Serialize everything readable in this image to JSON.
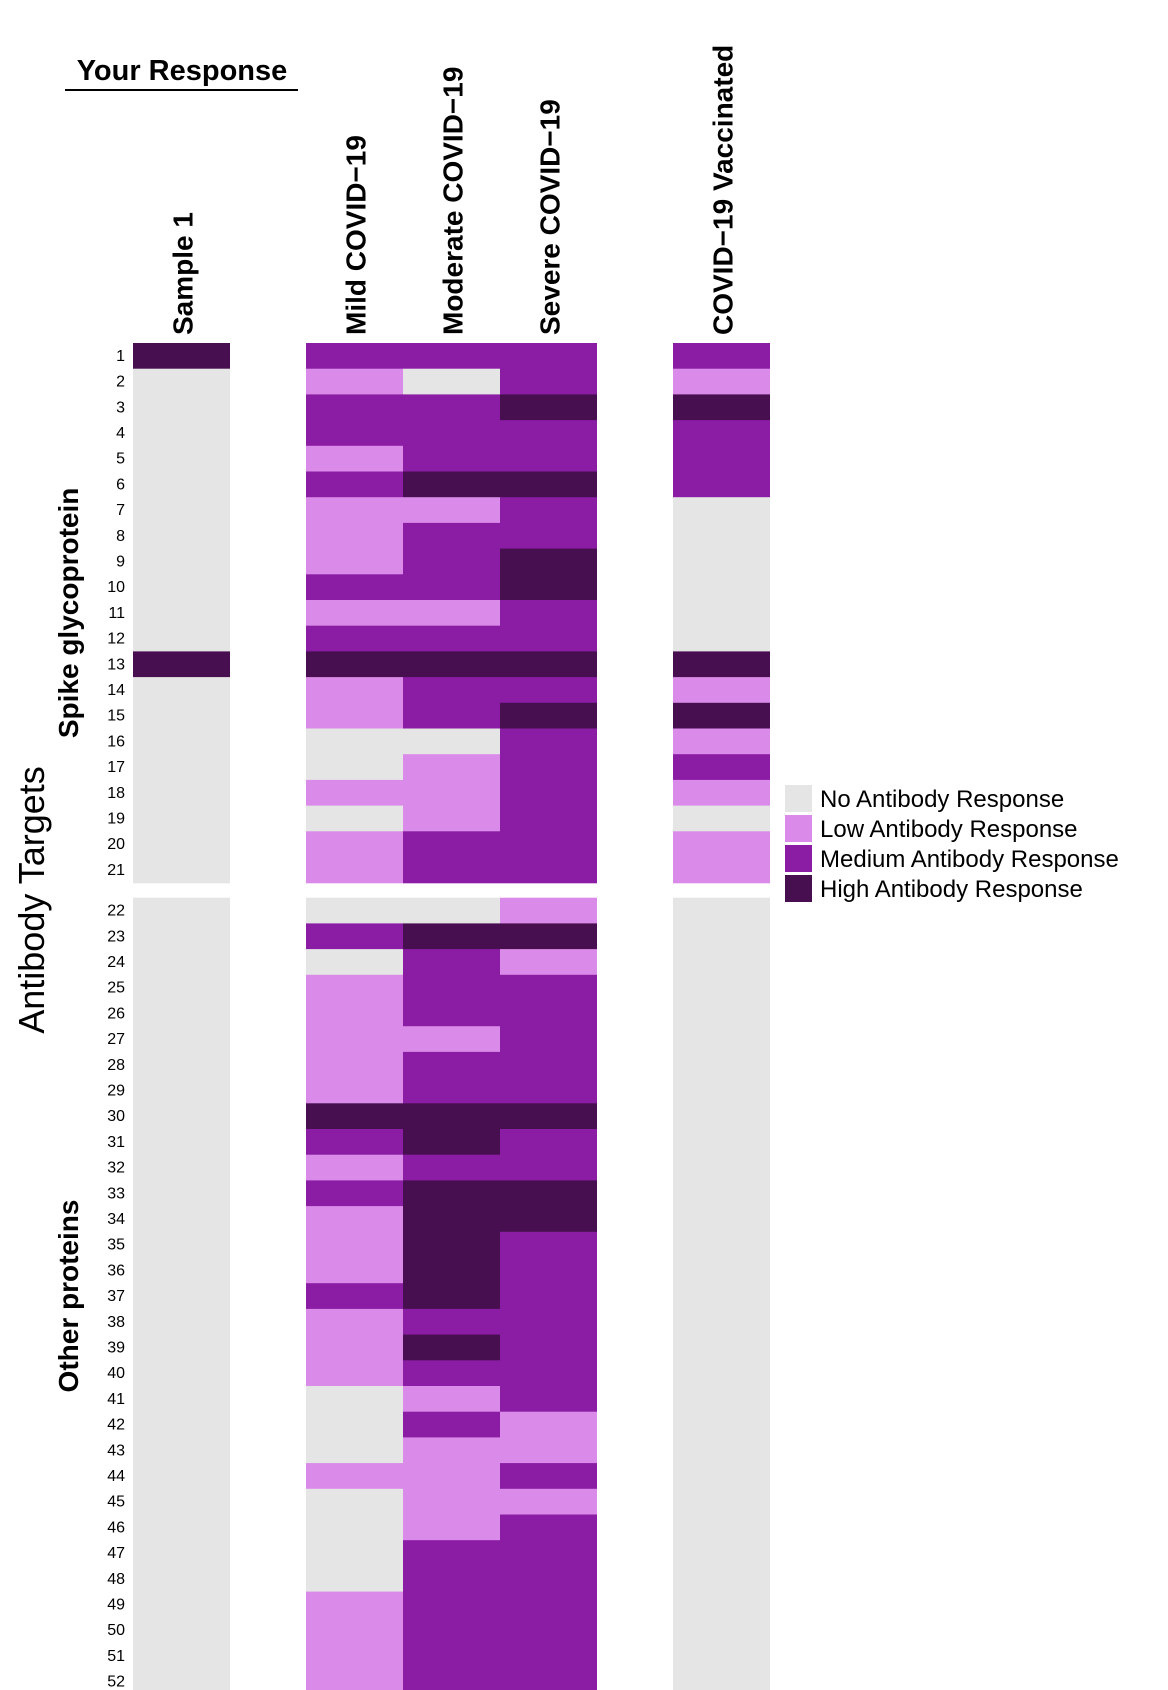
{
  "response_title": "Your Response",
  "y_axis_title": "Antibody Targets",
  "groups": [
    {
      "label": "Spike glycoprotein",
      "rows": [
        1,
        21
      ]
    },
    {
      "label": "Other proteins",
      "rows": [
        22,
        52
      ]
    }
  ],
  "legend": {
    "items": [
      {
        "label": "No Antibody Response",
        "color": "#e5e5e5"
      },
      {
        "label": "Low Antibody Response",
        "color": "#da8ae8"
      },
      {
        "label": "Medium Antibody Response",
        "color": "#8b1ca4"
      },
      {
        "label": "High Antibody Response",
        "color": "#470f50"
      }
    ]
  },
  "chart_data": {
    "type": "heatmap",
    "xlabel": "",
    "ylabel": "Antibody Targets",
    "levels": [
      "No Antibody Response",
      "Low Antibody Response",
      "Medium Antibody Response",
      "High Antibody Response"
    ],
    "row_labels": [
      "1",
      "2",
      "3",
      "4",
      "5",
      "6",
      "7",
      "8",
      "9",
      "10",
      "11",
      "12",
      "13",
      "14",
      "15",
      "16",
      "17",
      "18",
      "19",
      "20",
      "21",
      "22",
      "23",
      "24",
      "25",
      "26",
      "27",
      "28",
      "29",
      "30",
      "31",
      "32",
      "33",
      "34",
      "35",
      "36",
      "37",
      "38",
      "39",
      "40",
      "41",
      "42",
      "43",
      "44",
      "45",
      "46",
      "47",
      "48",
      "49",
      "50",
      "51",
      "52"
    ],
    "columns": [
      {
        "name": "Sample 1",
        "values": [
          3,
          0,
          0,
          0,
          0,
          0,
          0,
          0,
          0,
          0,
          0,
          0,
          3,
          0,
          0,
          0,
          0,
          0,
          0,
          0,
          0,
          0,
          0,
          0,
          0,
          0,
          0,
          0,
          0,
          0,
          0,
          0,
          0,
          0,
          0,
          0,
          0,
          0,
          0,
          0,
          0,
          0,
          0,
          0,
          0,
          0,
          0,
          0,
          0,
          0,
          0,
          0
        ]
      },
      {
        "name": "Mild COVID−19",
        "values": [
          2,
          1,
          2,
          2,
          1,
          2,
          1,
          1,
          1,
          2,
          1,
          2,
          3,
          1,
          1,
          0,
          0,
          1,
          0,
          1,
          1,
          0,
          2,
          0,
          1,
          1,
          1,
          1,
          1,
          3,
          2,
          1,
          2,
          1,
          1,
          1,
          2,
          1,
          1,
          1,
          0,
          0,
          0,
          1,
          0,
          0,
          0,
          0,
          1,
          1,
          1,
          1
        ]
      },
      {
        "name": "Moderate COVID−19",
        "values": [
          2,
          0,
          2,
          2,
          2,
          3,
          1,
          2,
          2,
          2,
          1,
          2,
          3,
          2,
          2,
          0,
          1,
          1,
          1,
          2,
          2,
          0,
          3,
          2,
          2,
          2,
          1,
          2,
          2,
          3,
          3,
          2,
          3,
          3,
          3,
          3,
          3,
          2,
          3,
          2,
          1,
          2,
          1,
          1,
          1,
          1,
          2,
          2,
          2,
          2,
          2,
          2
        ]
      },
      {
        "name": "Severe COVID−19",
        "values": [
          2,
          2,
          3,
          2,
          2,
          3,
          2,
          2,
          3,
          3,
          2,
          2,
          3,
          2,
          3,
          2,
          2,
          2,
          2,
          2,
          2,
          1,
          3,
          1,
          2,
          2,
          2,
          2,
          2,
          3,
          2,
          2,
          3,
          3,
          2,
          2,
          2,
          2,
          2,
          2,
          2,
          1,
          1,
          2,
          1,
          2,
          2,
          2,
          2,
          2,
          2,
          2
        ]
      },
      {
        "name": "COVID−19 Vaccinated",
        "values": [
          2,
          1,
          3,
          2,
          2,
          2,
          0,
          0,
          0,
          0,
          0,
          0,
          3,
          1,
          3,
          1,
          2,
          1,
          0,
          1,
          1,
          0,
          0,
          0,
          0,
          0,
          0,
          0,
          0,
          0,
          0,
          0,
          0,
          0,
          0,
          0,
          0,
          0,
          0,
          0,
          0,
          0,
          0,
          0,
          0,
          0,
          0,
          0,
          0,
          0,
          0,
          0
        ]
      }
    ]
  }
}
